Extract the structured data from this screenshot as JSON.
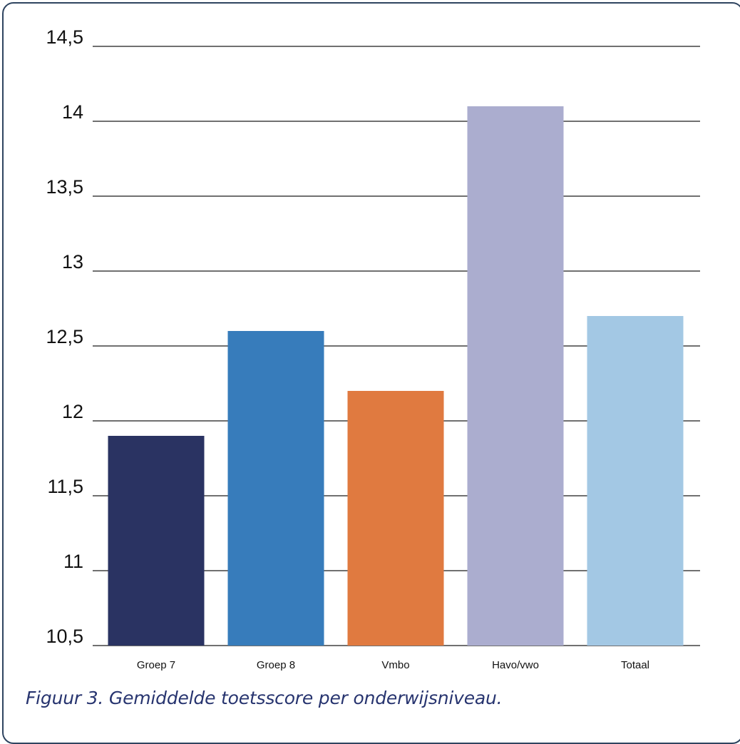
{
  "chart_data": {
    "type": "bar",
    "categories": [
      "Groep 7",
      "Groep 8",
      "Vmbo",
      "Havo/vwo",
      "Totaal"
    ],
    "values": [
      11.9,
      12.6,
      12.2,
      14.1,
      12.7
    ],
    "colors": [
      "#2a3362",
      "#377cbb",
      "#e07a40",
      "#abadcf",
      "#a3c8e4"
    ],
    "ylim": [
      10.5,
      14.5
    ],
    "yticks": [
      10.5,
      11,
      11.5,
      12,
      12.5,
      13,
      13.5,
      14,
      14.5
    ],
    "ytick_labels": [
      "10,5",
      "11",
      "11,5",
      "12",
      "12,5",
      "13",
      "13,5",
      "14",
      "14,5"
    ],
    "grid": true,
    "legend": "none",
    "title": "",
    "xlabel": "",
    "ylabel": ""
  },
  "caption": "Figuur 3. Gemiddelde toetsscore per onderwijsniveau."
}
